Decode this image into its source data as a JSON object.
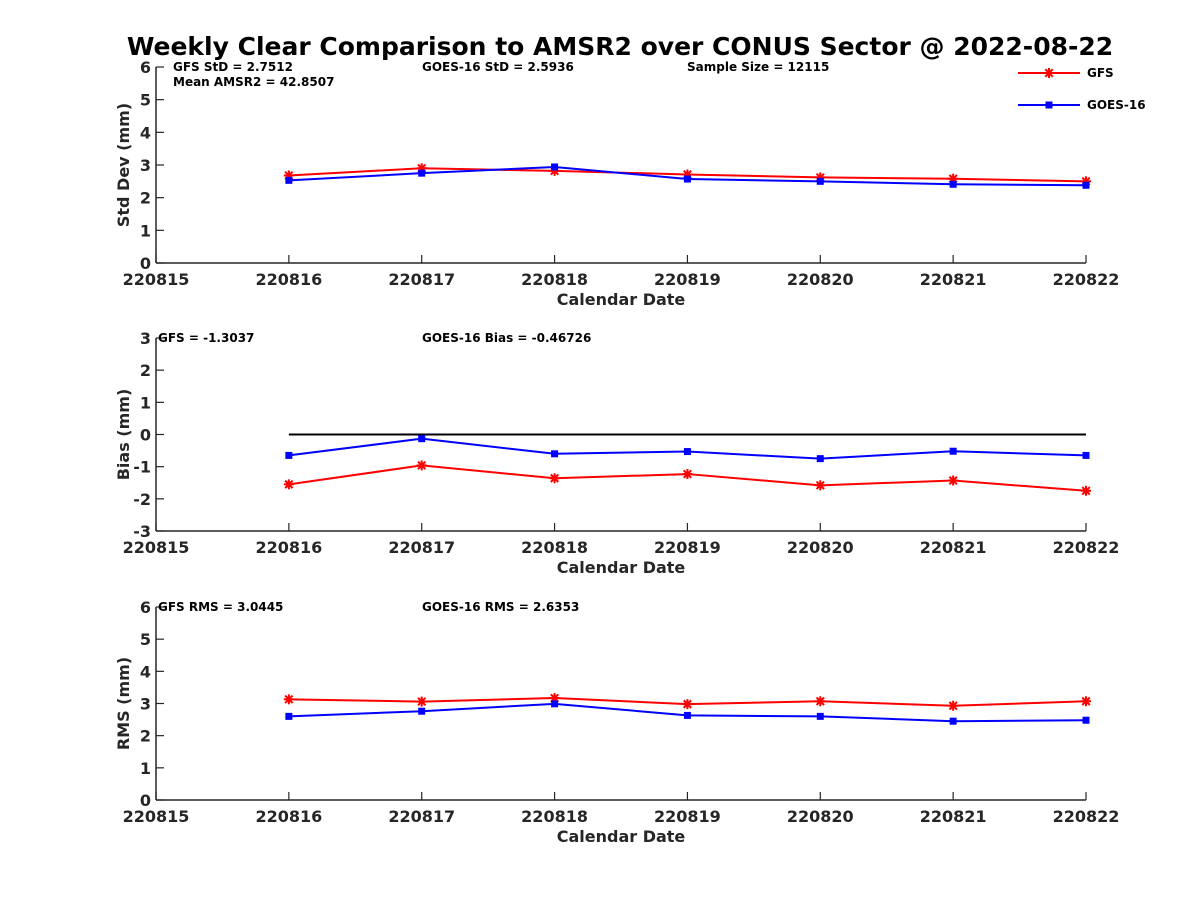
{
  "title": "Weekly Clear Comparison to AMSR2 over CONUS Sector @ 2022-08-22",
  "colors": {
    "gfs": "#ff0000",
    "goes16": "#0000ff",
    "zero_line": "#000000",
    "axis": "#262626"
  },
  "legend": {
    "placement": "top-right",
    "items": [
      {
        "label": "GFS",
        "color": "#ff0000",
        "marker": "asterisk"
      },
      {
        "label": "GOES-16",
        "color": "#0000ff",
        "marker": "square"
      }
    ]
  },
  "chart_data": [
    {
      "type": "line",
      "xlabel": "Calendar Date",
      "ylabel": "Std Dev (mm)",
      "xlim": [
        220815,
        220822
      ],
      "ylim": [
        0,
        6
      ],
      "xticks": [
        "220815",
        "220816",
        "220817",
        "220818",
        "220819",
        "220820",
        "220821",
        "220822"
      ],
      "yticks": [
        "0",
        "1",
        "2",
        "3",
        "4",
        "5",
        "6"
      ],
      "x": [
        220816,
        220817,
        220818,
        220819,
        220820,
        220821,
        220822
      ],
      "series": [
        {
          "name": "GFS",
          "color": "#ff0000",
          "marker": "asterisk",
          "values": [
            2.68,
            2.9,
            2.82,
            2.71,
            2.62,
            2.58,
            2.5
          ]
        },
        {
          "name": "GOES-16",
          "color": "#0000ff",
          "marker": "square",
          "values": [
            2.53,
            2.75,
            2.94,
            2.57,
            2.5,
            2.41,
            2.38
          ]
        }
      ],
      "annotations": [
        "GFS StD = 2.7512",
        "Mean AMSR2 = 42.8507",
        "GOES-16 StD = 2.5936",
        "Sample Size = 12115"
      ]
    },
    {
      "type": "line",
      "xlabel": "Calendar Date",
      "ylabel": "Bias (mm)",
      "xlim": [
        220815,
        220822
      ],
      "ylim": [
        -3,
        3
      ],
      "xticks": [
        "220815",
        "220816",
        "220817",
        "220818",
        "220819",
        "220820",
        "220821",
        "220822"
      ],
      "yticks": [
        "-3",
        "-2",
        "-1",
        "0",
        "1",
        "2",
        "3"
      ],
      "x": [
        220816,
        220817,
        220818,
        220819,
        220820,
        220821,
        220822
      ],
      "zero_line": true,
      "series": [
        {
          "name": "GFS",
          "color": "#ff0000",
          "marker": "asterisk",
          "values": [
            -1.55,
            -0.96,
            -1.36,
            -1.23,
            -1.58,
            -1.43,
            -1.75
          ]
        },
        {
          "name": "GOES-16",
          "color": "#0000ff",
          "marker": "square",
          "values": [
            -0.65,
            -0.13,
            -0.6,
            -0.53,
            -0.75,
            -0.52,
            -0.65
          ]
        }
      ],
      "annotations": [
        "GFS = -1.3037",
        "GOES-16 Bias  = -0.46726"
      ]
    },
    {
      "type": "line",
      "xlabel": "Calendar Date",
      "ylabel": "RMS (mm)",
      "xlim": [
        220815,
        220822
      ],
      "ylim": [
        0,
        6
      ],
      "xticks": [
        "220815",
        "220816",
        "220817",
        "220818",
        "220819",
        "220820",
        "220821",
        "220822"
      ],
      "yticks": [
        "0",
        "1",
        "2",
        "3",
        "4",
        "5",
        "6"
      ],
      "x": [
        220816,
        220817,
        220818,
        220819,
        220820,
        220821,
        220822
      ],
      "series": [
        {
          "name": "GFS",
          "color": "#ff0000",
          "marker": "asterisk",
          "values": [
            3.13,
            3.06,
            3.17,
            2.98,
            3.07,
            2.93,
            3.07
          ]
        },
        {
          "name": "GOES-16",
          "color": "#0000ff",
          "marker": "square",
          "values": [
            2.6,
            2.76,
            2.99,
            2.63,
            2.6,
            2.45,
            2.48
          ]
        }
      ],
      "annotations": [
        "GFS RMS = 3.0445",
        "GOES-16 RMS = 2.6353"
      ]
    }
  ]
}
